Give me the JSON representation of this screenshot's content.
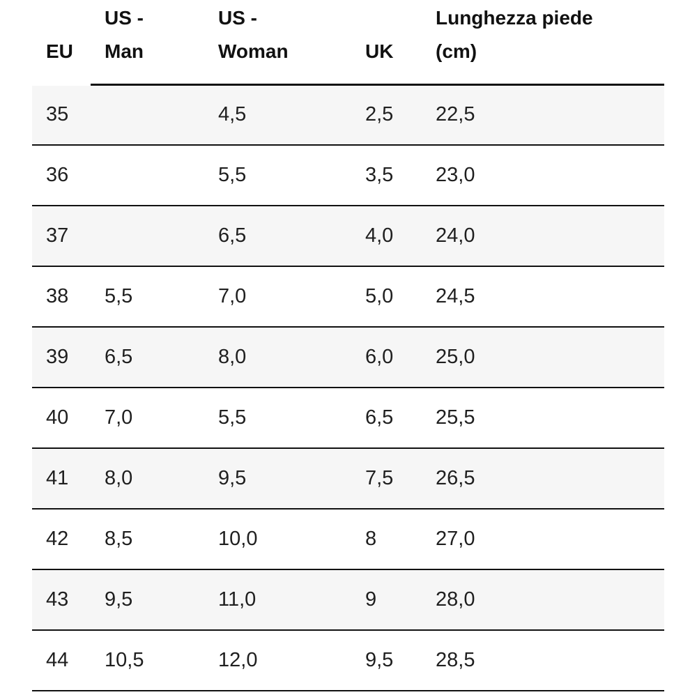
{
  "table": {
    "headers": {
      "eu": [
        "EU"
      ],
      "us_man": [
        "US -",
        "Man"
      ],
      "us_woman": [
        "US -",
        "Woman"
      ],
      "uk": [
        "UK"
      ],
      "foot_length": [
        "Lunghezza piede",
        "(cm)"
      ]
    },
    "rows": [
      {
        "eu": "35",
        "us_man": "",
        "us_woman": "4,5",
        "uk": "2,5",
        "foot_length": "22,5"
      },
      {
        "eu": "36",
        "us_man": "",
        "us_woman": "5,5",
        "uk": "3,5",
        "foot_length": "23,0"
      },
      {
        "eu": "37",
        "us_man": "",
        "us_woman": "6,5",
        "uk": "4,0",
        "foot_length": "24,0"
      },
      {
        "eu": "38",
        "us_man": "5,5",
        "us_woman": "7,0",
        "uk": "5,0",
        "foot_length": "24,5"
      },
      {
        "eu": "39",
        "us_man": "6,5",
        "us_woman": "8,0",
        "uk": "6,0",
        "foot_length": "25,0"
      },
      {
        "eu": "40",
        "us_man": "7,0",
        "us_woman": "5,5",
        "uk": "6,5",
        "foot_length": "25,5"
      },
      {
        "eu": "41",
        "us_man": "8,0",
        "us_woman": "9,5",
        "uk": "7,5",
        "foot_length": "26,5"
      },
      {
        "eu": "42",
        "us_man": "8,5",
        "us_woman": "10,0",
        "uk": "8",
        "foot_length": "27,0"
      },
      {
        "eu": "43",
        "us_man": "9,5",
        "us_woman": "11,0",
        "uk": "9",
        "foot_length": "28,0"
      },
      {
        "eu": "44",
        "us_man": "10,5",
        "us_woman": "12,0",
        "uk": "9,5",
        "foot_length": "28,5"
      }
    ]
  }
}
